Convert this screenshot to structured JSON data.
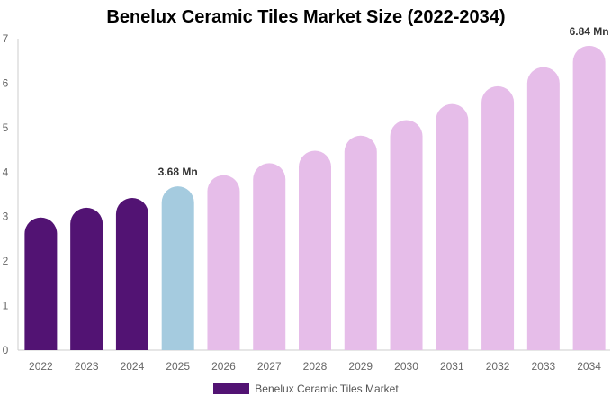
{
  "chart_data": {
    "type": "bar",
    "title": "Benelux Ceramic Tiles Market Size (2022-2034)",
    "xlabel": "",
    "ylabel": "",
    "categories": [
      "2022",
      "2023",
      "2024",
      "2025",
      "2026",
      "2027",
      "2028",
      "2029",
      "2030",
      "2031",
      "2032",
      "2033",
      "2034"
    ],
    "series": [
      {
        "name": "Benelux Ceramic Tiles Market",
        "values": [
          2.98,
          3.2,
          3.42,
          3.68,
          3.93,
          4.2,
          4.48,
          4.82,
          5.17,
          5.53,
          5.93,
          6.36,
          6.84
        ]
      }
    ],
    "ylim": [
      0,
      7
    ],
    "yticks": [
      0,
      1,
      2,
      3,
      4,
      5,
      6,
      7
    ],
    "data_labels": [
      {
        "index": 3,
        "text": "3.68 Mn"
      },
      {
        "index": 12,
        "text": "6.84 Mn"
      }
    ],
    "legend_position": "bottom",
    "grid": false,
    "colors": {
      "historical": "#521373",
      "current": "#a5cbdf",
      "forecast": "#e6bde9",
      "axis": "#cccccc",
      "tick_text": "#666666"
    },
    "bar_color_groups": [
      "historical",
      "historical",
      "historical",
      "current",
      "forecast",
      "forecast",
      "forecast",
      "forecast",
      "forecast",
      "forecast",
      "forecast",
      "forecast",
      "forecast"
    ]
  }
}
